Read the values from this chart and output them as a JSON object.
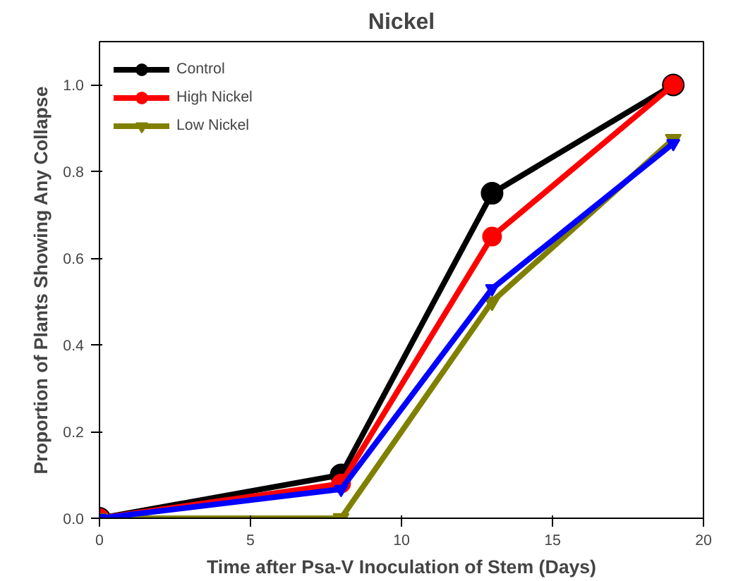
{
  "chart_data": {
    "type": "line",
    "title": "Nickel",
    "xlabel": "Time after Psa-V Inoculation of Stem (Days)",
    "ylabel": "Proportion of Plants Showing Any Collapse",
    "x": [
      0,
      8,
      13,
      19
    ],
    "series": [
      {
        "name": "Control",
        "color": "#000000",
        "marker": "circle",
        "values": [
          0,
          0.1,
          0.75,
          1.0
        ]
      },
      {
        "name": "High Nickel",
        "color": "#ff0000",
        "marker": "circle",
        "values": [
          0,
          0.08,
          0.65,
          1.0
        ]
      },
      {
        "name": "Low Nickel",
        "color": "#808000",
        "marker": "triangle",
        "values": [
          0,
          0,
          0.5,
          0.875
        ]
      },
      {
        "color": "#0000ff",
        "marker": "triangle",
        "values": [
          0,
          0.067,
          0.53,
          0.865
        ]
      }
    ],
    "xlim": [
      0,
      20
    ],
    "xticks": [
      0,
      5,
      10,
      15,
      20
    ],
    "ylim": [
      0,
      1.1
    ],
    "yticks": [
      {
        "value": 0,
        "label": "0.0"
      },
      {
        "value": 0.2,
        "label": "0.2"
      },
      {
        "value": 0.4,
        "label": "0.4"
      },
      {
        "value": 0.6,
        "label": "0.6"
      },
      {
        "value": 0.8,
        "label": "0.8"
      },
      {
        "value": 1.0,
        "label": "1.0"
      }
    ],
    "grid": false,
    "legend": "top left",
    "line_style": "solid"
  }
}
